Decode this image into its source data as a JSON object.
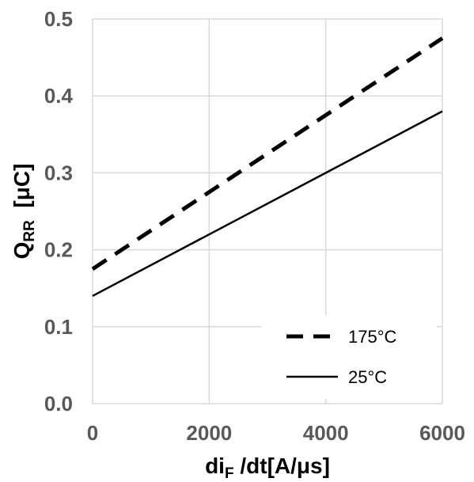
{
  "chart_data": {
    "type": "line",
    "xlabel": "di_F /dt[A/μs]",
    "xlabel_parts": {
      "main": "di",
      "sub": "F",
      "rest": " /dt[A/μs]"
    },
    "ylabel": "Q_RR [μC]",
    "ylabel_parts": {
      "main": "Q",
      "sub": "RR",
      "rest": "  [μC]"
    },
    "xlim": [
      0,
      6000
    ],
    "ylim": [
      0.0,
      0.5
    ],
    "x_ticks": [
      "0",
      "2000",
      "4000",
      "6000"
    ],
    "y_ticks": [
      "0.0",
      "0.1",
      "0.2",
      "0.3",
      "0.4",
      "0.5"
    ],
    "grid": true,
    "legend_position": "bottom-right",
    "series": [
      {
        "name": "175°C",
        "x": [
          0,
          6000
        ],
        "y": [
          0.175,
          0.475
        ],
        "style": "dashed",
        "color": "#000000"
      },
      {
        "name": "25°C",
        "x": [
          0,
          6000
        ],
        "y": [
          0.14,
          0.38
        ],
        "style": "solid",
        "color": "#000000"
      }
    ]
  }
}
